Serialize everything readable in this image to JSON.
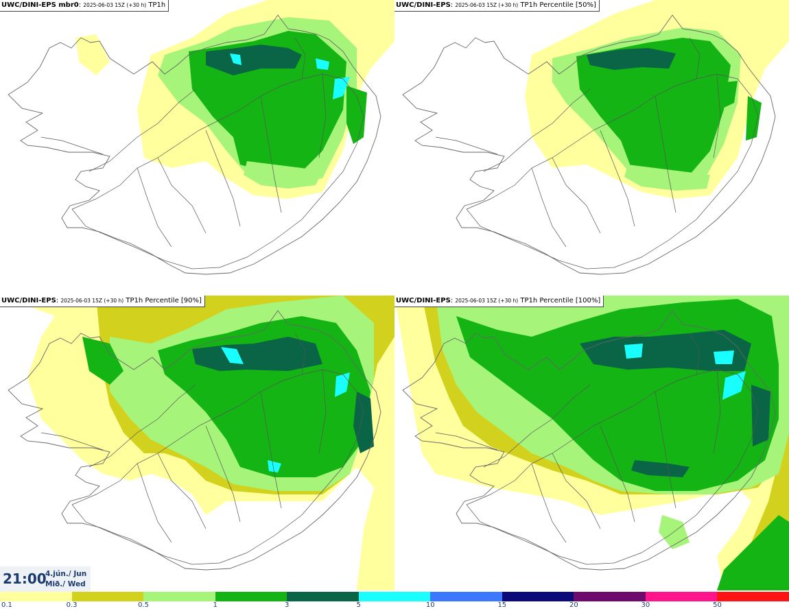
{
  "panels": [
    {
      "bold": "UWC/DINI-EPS mbr0",
      "run": "2025-06-03 15Z (+30 h)",
      "field": "TP1h"
    },
    {
      "bold": "UWC/DINI-EPS",
      "run": "2025-06-03 15Z (+30 h)",
      "field": "TP1h Percentile [50%]"
    },
    {
      "bold": "UWC/DINI-EPS",
      "run": "2025-06-03 15Z (+30 h)",
      "field": "TP1h Percentile [90%]"
    },
    {
      "bold": "UWC/DINI-EPS",
      "run": "2025-06-03 15Z (+30 h)",
      "field": "TP1h Percentile [100%]"
    }
  ],
  "valid_time": {
    "time": "21:00",
    "date_line1": "4.jún./ Jun",
    "date_line2": "Mið./ Wed"
  },
  "legend": {
    "labels": [
      "0.1",
      "0.3",
      "0.5",
      "1",
      "3",
      "5",
      "10",
      "15",
      "20",
      "30",
      "50"
    ],
    "colors": [
      "#ffff9e",
      "#d2d21e",
      "#a6f57a",
      "#14b414",
      "#0a6446",
      "#19ffff",
      "#3c78ff",
      "#0a0a78",
      "#6e0a6e",
      "#ff148c",
      "#ff1414"
    ]
  },
  "map_colors": {
    "coast": "#666666",
    "roads": "#555555"
  }
}
